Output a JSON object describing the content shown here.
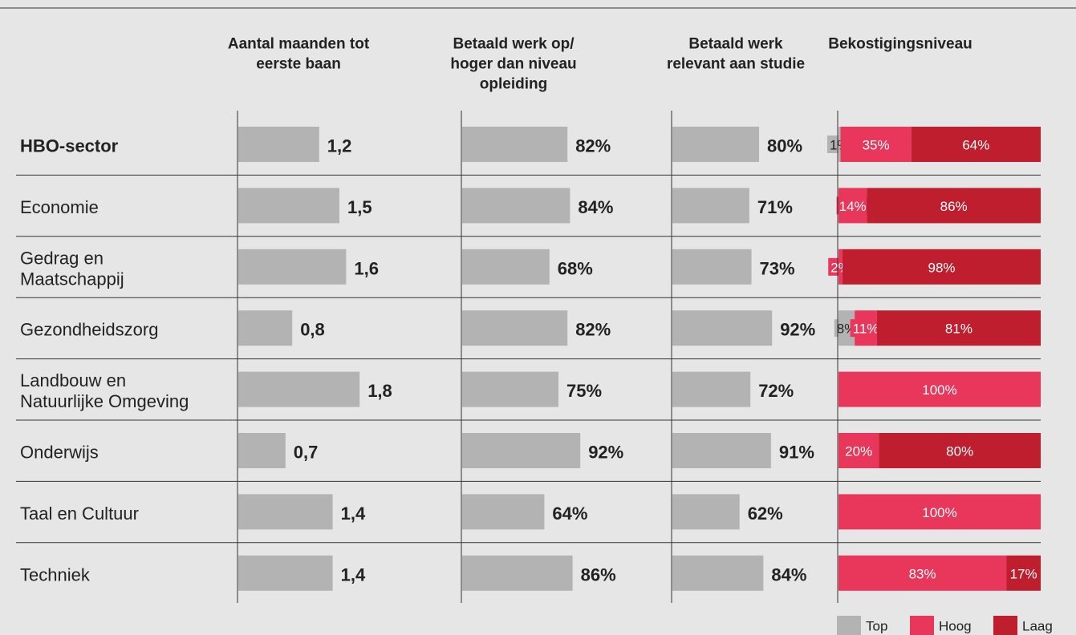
{
  "chart_data": {
    "categories": [
      "HBO-sector",
      "Economie",
      [
        "Gedrag en",
        "Maatschappij"
      ],
      "Gezondheidszorg",
      [
        "Landbouw en",
        "Natuurlijke Omgeving"
      ],
      "Onderwijs",
      "Taal en Cultuur",
      "Techniek"
    ],
    "panels": [
      {
        "type": "bar",
        "title": [
          "Aantal maanden tot",
          "eerste baan"
        ],
        "xlim": [
          0,
          3
        ],
        "color": "#b3b3b3",
        "values": [
          1.2,
          1.5,
          1.6,
          0.8,
          1.8,
          0.7,
          1.4,
          1.4
        ],
        "value_labels": [
          "1,2",
          "1,5",
          "1,6",
          "0,8",
          "1,8",
          "0,7",
          "1,4",
          "1,4"
        ]
      },
      {
        "type": "bar",
        "title": [
          "Betaald werk op/",
          "hoger dan niveau",
          "opleiding"
        ],
        "xlim": [
          0,
          100
        ],
        "color": "#b3b3b3",
        "values": [
          82,
          84,
          68,
          82,
          75,
          92,
          64,
          86
        ],
        "value_labels": [
          "82%",
          "84%",
          "68%",
          "82%",
          "75%",
          "92%",
          "64%",
          "86%"
        ]
      },
      {
        "type": "bar",
        "title": [
          "Betaald werk",
          "relevant aan studie"
        ],
        "xlim": [
          0,
          100
        ],
        "color": "#b3b3b3",
        "values": [
          80,
          71,
          73,
          92,
          72,
          91,
          62,
          84
        ],
        "value_labels": [
          "80%",
          "71%",
          "73%",
          "92%",
          "72%",
          "91%",
          "62%",
          "84%"
        ]
      },
      {
        "type": "stacked-bar",
        "title": [
          "Bekostigingsniveau"
        ],
        "xlim": [
          0,
          100
        ],
        "series": [
          {
            "name": "Top",
            "color": "#b3b3b3",
            "values": [
              1,
              0,
              0,
              8,
              0,
              0,
              0,
              0
            ],
            "value_labels": [
              "1%",
              null,
              null,
              "8%",
              null,
              null,
              null,
              null
            ]
          },
          {
            "name": "Hoog",
            "color": "#e8375a",
            "values": [
              35,
              14,
              2,
              11,
              100,
              20,
              100,
              83
            ],
            "value_labels": [
              "35%",
              "14%",
              "2%",
              "11%",
              "100%",
              "20%",
              "100%",
              "83%"
            ]
          },
          {
            "name": "Laag",
            "color": "#be1e2d",
            "values": [
              64,
              86,
              98,
              81,
              0,
              80,
              0,
              17
            ],
            "value_labels": [
              "64%",
              "86%",
              "98%",
              "81%",
              null,
              "80%",
              null,
              "17%"
            ]
          }
        ]
      }
    ]
  }
}
